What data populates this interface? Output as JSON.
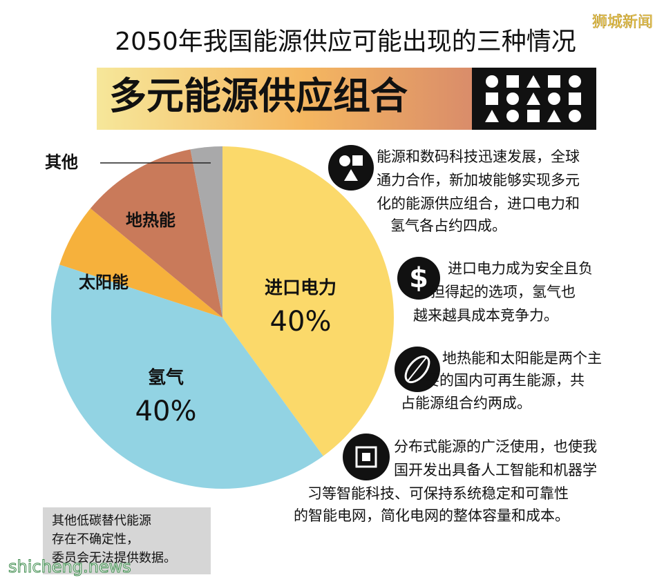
{
  "header": {
    "title": "2050年我国能源供应可能出现的三种情况",
    "subtitle": "多元能源供应组合"
  },
  "chart_data": {
    "type": "pie",
    "categories": [
      "进口电力",
      "氢气",
      "太阳能",
      "地热能",
      "其他"
    ],
    "values": [
      40,
      40,
      6,
      11,
      3
    ],
    "value_labels": [
      "40%",
      "40%",
      null,
      null,
      null
    ],
    "colors": [
      "#fbd96a",
      "#92d3e3",
      "#f6b13c",
      "#c97a5a",
      "#a9a9aa"
    ]
  },
  "points": [
    {
      "lines": [
        "能源和数码科技迅速发展，全球",
        "通力合作，新加坡能够实现多元",
        "化的能源供应组合，进口电力和",
        "氢气各占约四成。"
      ]
    },
    {
      "lines": [
        "进口电力成为安全且负",
        "担得起的选项，氢气也",
        "越来越具成本竞争力。"
      ]
    },
    {
      "lines": [
        "地热能和太阳能是两个主",
        "要的国内可再生能源，共",
        "占能源组合约两成。"
      ]
    },
    {
      "lines": [
        "分布式能源的广泛使用，也使我",
        "国开发出具备人工智能和机器学",
        "习等智能科技、可保持系统稳定和可靠性",
        "的智能电网，简化电网的整体容量和成本。"
      ]
    }
  ],
  "note": {
    "lines": [
      "其他低碳替代能源",
      "存在不确定性，",
      "委员会无法提供数据。"
    ]
  },
  "watermarks": {
    "top": "狮城新闻",
    "bottom": "shicheng.news"
  }
}
